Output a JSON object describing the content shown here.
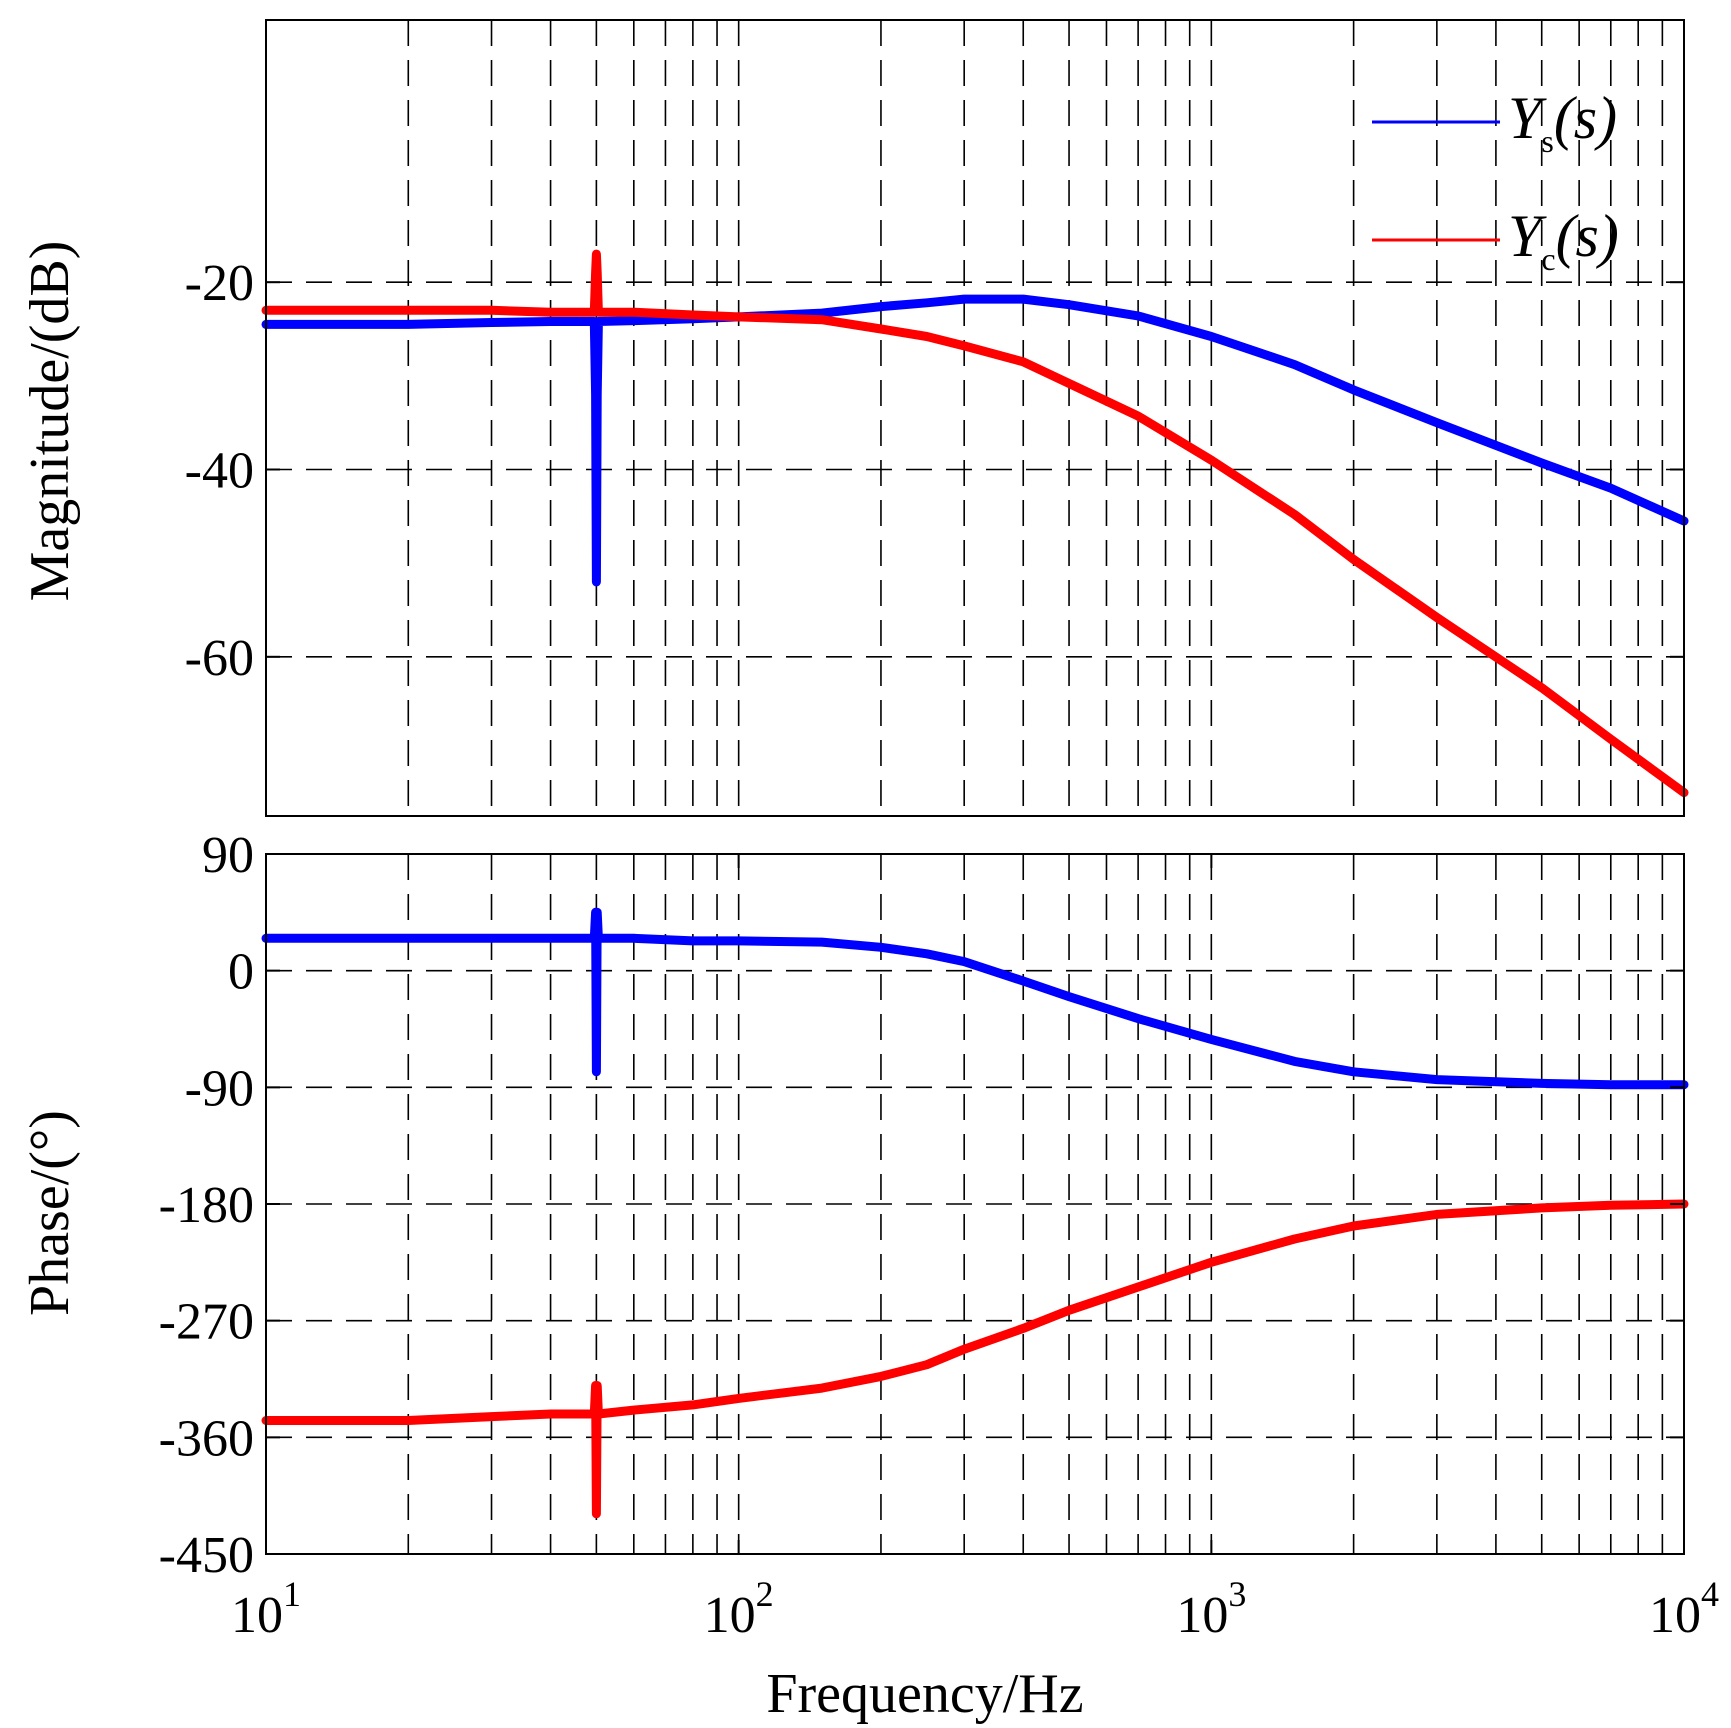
{
  "chart_data": [
    {
      "type": "line",
      "panel": "magnitude",
      "ylabel": "Magnitude/(dB)",
      "xscale": "log",
      "xlim": [
        10,
        10000
      ],
      "ylim": [
        -77,
        8
      ],
      "yticks": [
        -20,
        -40,
        -60
      ],
      "ytick_labels": [
        "-20",
        "-40",
        "-60"
      ],
      "grid": true,
      "legend_position": "top-right",
      "series": [
        {
          "name": "Ys(s)",
          "color": "#0000ff",
          "x": [
            10,
            20,
            30,
            40,
            49.5,
            49.8,
            50,
            50.2,
            50.5,
            60,
            80,
            100,
            150,
            200,
            250,
            300,
            400,
            500,
            700,
            1000,
            1500,
            2000,
            3000,
            5000,
            7000,
            10000
          ],
          "y": [
            -24.5,
            -24.5,
            -24.3,
            -24.2,
            -24.2,
            -32,
            -52,
            -32,
            -24.2,
            -24.1,
            -23.9,
            -23.7,
            -23.3,
            -22.6,
            -22.2,
            -21.8,
            -21.8,
            -22.4,
            -23.6,
            -25.8,
            -28.8,
            -31.5,
            -35.0,
            -39.3,
            -42.0,
            -45.5
          ]
        },
        {
          "name": "Yc(s)",
          "color": "#ff0000",
          "x": [
            10,
            20,
            30,
            40,
            49.5,
            49.8,
            50,
            50.2,
            50.5,
            60,
            80,
            100,
            150,
            200,
            250,
            300,
            400,
            500,
            700,
            1000,
            1500,
            2000,
            3000,
            5000,
            7000,
            10000
          ],
          "y": [
            -23,
            -23,
            -23,
            -23.2,
            -23.2,
            -19,
            -17,
            -19,
            -23.2,
            -23.2,
            -23.5,
            -23.7,
            -24.0,
            -25.0,
            -25.8,
            -26.8,
            -28.5,
            -30.8,
            -34.3,
            -39.0,
            -44.8,
            -49.6,
            -55.8,
            -63.3,
            -68.8,
            -74.5
          ]
        }
      ]
    },
    {
      "type": "line",
      "panel": "phase",
      "xlabel": "Frequency/Hz",
      "ylabel": "Phase/(°)",
      "xscale": "log",
      "xlim": [
        10,
        10000
      ],
      "xticks": [
        10,
        100,
        1000,
        10000
      ],
      "xtick_labels": [
        [
          "10",
          "1"
        ],
        [
          "10",
          "2"
        ],
        [
          "10",
          "3"
        ],
        [
          "10",
          "4"
        ]
      ],
      "ylim": [
        -450,
        90
      ],
      "yticks": [
        90,
        0,
        -90,
        -180,
        -270,
        -360,
        -450
      ],
      "ytick_labels": [
        "90",
        "0",
        "-90",
        "-180",
        "-270",
        "-360",
        "-450"
      ],
      "grid": true,
      "series": [
        {
          "name": "Ys(s)",
          "color": "#0000ff",
          "x": [
            10,
            20,
            30,
            40,
            49.5,
            49.8,
            50,
            50.2,
            50.5,
            60,
            80,
            100,
            150,
            200,
            250,
            300,
            400,
            500,
            700,
            1000,
            1500,
            2000,
            3000,
            5000,
            7000,
            10000
          ],
          "y": [
            25,
            25,
            25,
            25,
            25,
            45,
            -78,
            45,
            25,
            25,
            23,
            23,
            22,
            18,
            13,
            7,
            -8,
            -20,
            -37,
            -53,
            -70,
            -78,
            -84,
            -87,
            -88,
            -88
          ]
        },
        {
          "name": "Yc(s)",
          "color": "#ff0000",
          "x": [
            10,
            20,
            30,
            40,
            49.5,
            49.8,
            50,
            50.2,
            50.5,
            60,
            80,
            100,
            150,
            200,
            250,
            300,
            400,
            500,
            700,
            1000,
            1500,
            2000,
            3000,
            5000,
            7000,
            10000
          ],
          "y": [
            -347,
            -347,
            -344,
            -342,
            -342,
            -320,
            -419,
            -320,
            -342,
            -339,
            -335,
            -330,
            -322,
            -313,
            -304,
            -292,
            -276,
            -262,
            -244,
            -225,
            -207,
            -197,
            -188,
            -183,
            -181,
            -180
          ]
        }
      ]
    }
  ]
}
